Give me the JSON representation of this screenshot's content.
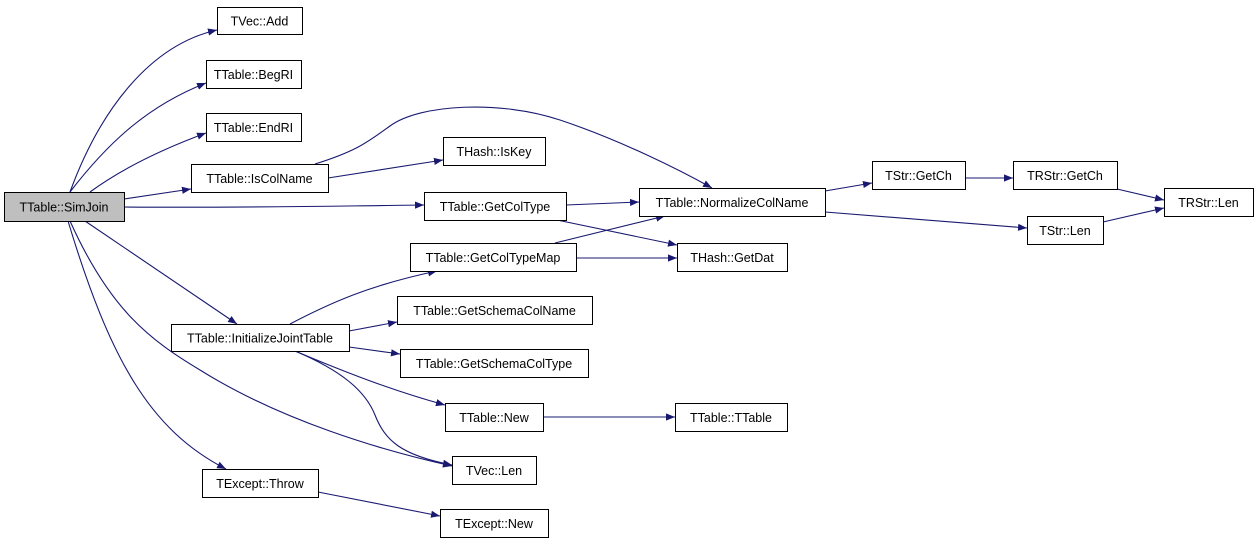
{
  "colors": {
    "edge": "#191970",
    "root_fill": "#bfbfbf",
    "node_fill": "#ffffff"
  },
  "nodes": [
    {
      "id": "simjoin",
      "label": "TTable::SimJoin",
      "root": true
    },
    {
      "id": "vecadd",
      "label": "TVec::Add"
    },
    {
      "id": "begri",
      "label": "TTable::BegRI"
    },
    {
      "id": "endri",
      "label": "TTable::EndRI"
    },
    {
      "id": "iscolname",
      "label": "TTable::IsColName"
    },
    {
      "id": "iskey",
      "label": "THash::IsKey"
    },
    {
      "id": "getcoltype",
      "label": "TTable::GetColType"
    },
    {
      "id": "getcoltypemap",
      "label": "TTable::GetColTypeMap"
    },
    {
      "id": "getschemacolname",
      "label": "TTable::GetSchemaColName"
    },
    {
      "id": "getschemacoltype",
      "label": "TTable::GetSchemaColType"
    },
    {
      "id": "tablenew",
      "label": "TTable::New"
    },
    {
      "id": "veclen",
      "label": "TVec::Len"
    },
    {
      "id": "initjoint",
      "label": "TTable::InitializeJointTable"
    },
    {
      "id": "throw",
      "label": "TExcept::Throw"
    },
    {
      "id": "exceptnew",
      "label": "TExcept::New"
    },
    {
      "id": "normalize",
      "label": "TTable::NormalizeColName"
    },
    {
      "id": "getdat",
      "label": "THash::GetDat"
    },
    {
      "id": "ttable",
      "label": "TTable::TTable"
    },
    {
      "id": "strgetch",
      "label": "TStr::GetCh"
    },
    {
      "id": "rstrgetch",
      "label": "TRStr::GetCh"
    },
    {
      "id": "strlen",
      "label": "TStr::Len"
    },
    {
      "id": "rstrlen",
      "label": "TRStr::Len"
    }
  ],
  "edges": [
    [
      "simjoin",
      "vecadd"
    ],
    [
      "simjoin",
      "begri"
    ],
    [
      "simjoin",
      "endri"
    ],
    [
      "simjoin",
      "iscolname"
    ],
    [
      "simjoin",
      "getcoltype"
    ],
    [
      "simjoin",
      "initjoint"
    ],
    [
      "simjoin",
      "veclen"
    ],
    [
      "simjoin",
      "throw"
    ],
    [
      "iscolname",
      "iskey"
    ],
    [
      "iscolname",
      "normalize"
    ],
    [
      "getcoltype",
      "normalize"
    ],
    [
      "getcoltype",
      "getdat"
    ],
    [
      "getcoltypemap",
      "normalize"
    ],
    [
      "getcoltypemap",
      "getdat"
    ],
    [
      "initjoint",
      "getcoltypemap"
    ],
    [
      "initjoint",
      "getschemacolname"
    ],
    [
      "initjoint",
      "getschemacoltype"
    ],
    [
      "initjoint",
      "tablenew"
    ],
    [
      "initjoint",
      "veclen"
    ],
    [
      "tablenew",
      "ttable"
    ],
    [
      "throw",
      "exceptnew"
    ],
    [
      "normalize",
      "strgetch"
    ],
    [
      "normalize",
      "strlen"
    ],
    [
      "strgetch",
      "rstrgetch"
    ],
    [
      "rstrgetch",
      "rstrlen"
    ],
    [
      "strlen",
      "rstrlen"
    ]
  ]
}
